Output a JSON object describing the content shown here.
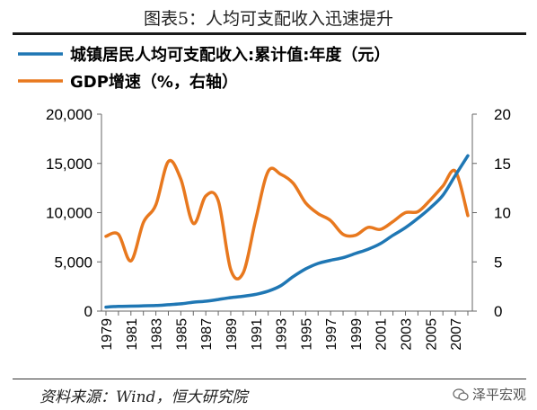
{
  "figure": {
    "title": "图表5：人均可支配收入迅速提升",
    "source": "资料来源：Wind，恒大研究院",
    "watermark": "泽平宏观"
  },
  "colors": {
    "income": "#1f77b4",
    "gdp": "#e8781e"
  },
  "chart_data": {
    "type": "line",
    "x": [
      1979,
      1980,
      1981,
      1982,
      1983,
      1984,
      1985,
      1986,
      1987,
      1988,
      1989,
      1990,
      1991,
      1992,
      1993,
      1994,
      1995,
      1996,
      1997,
      1998,
      1999,
      2000,
      2001,
      2002,
      2003,
      2004,
      2005,
      2006,
      2007,
      2008
    ],
    "x_tick_labels": [
      "1979",
      "1981",
      "1983",
      "1985",
      "1987",
      "1989",
      "1991",
      "1993",
      "1995",
      "1997",
      "1999",
      "2001",
      "2003",
      "2005",
      "2007"
    ],
    "series": [
      {
        "name": "城镇居民人均可支配收入:累计值:年度（元）",
        "axis": "left",
        "values": [
          406,
          478,
          500,
          535,
          565,
          652,
          739,
          900,
          1002,
          1180,
          1374,
          1510,
          1700,
          2027,
          2577,
          3496,
          4283,
          4839,
          5160,
          5425,
          5854,
          6280,
          6860,
          7703,
          8472,
          9422,
          10493,
          11759,
          13786,
          15781
        ]
      },
      {
        "name": "GDP增速（%，右轴）",
        "axis": "right",
        "values": [
          7.6,
          7.8,
          5.1,
          9.0,
          10.8,
          15.2,
          13.4,
          8.9,
          11.7,
          11.2,
          4.2,
          3.9,
          9.3,
          14.2,
          13.9,
          13.0,
          11.0,
          9.9,
          9.2,
          7.8,
          7.7,
          8.5,
          8.3,
          9.1,
          10.0,
          10.1,
          11.3,
          12.7,
          14.2,
          9.7
        ]
      }
    ],
    "y_left": {
      "ylim": [
        0,
        20000
      ],
      "ticks": [
        "0",
        "5,000",
        "10,000",
        "15,000",
        "20,000"
      ],
      "tick_values": [
        0,
        5000,
        10000,
        15000,
        20000
      ]
    },
    "y_right": {
      "ylim": [
        0,
        20
      ],
      "ticks": [
        "0",
        "5",
        "10",
        "15",
        "20"
      ],
      "tick_values": [
        0,
        5,
        10,
        15,
        20
      ]
    },
    "legend_position": "top-left",
    "grid": false
  }
}
